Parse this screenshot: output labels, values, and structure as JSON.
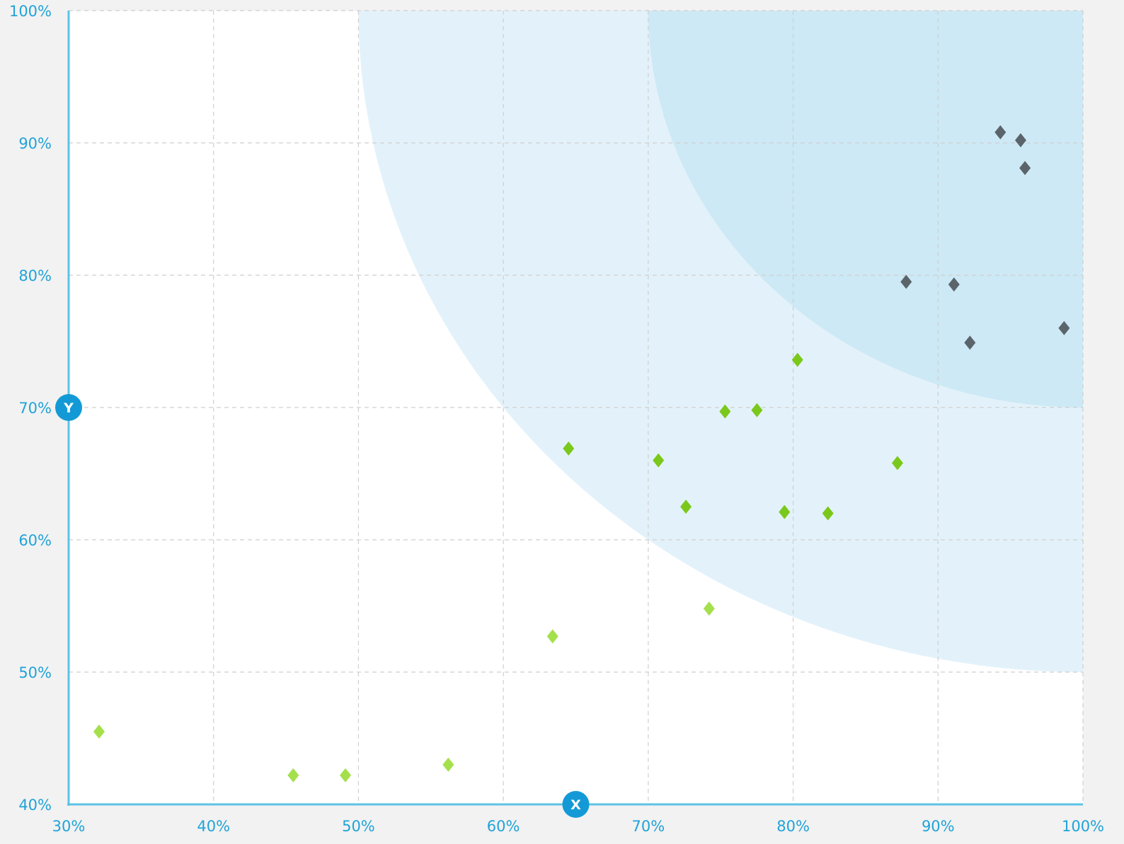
{
  "colors": {
    "background": "#f2f2f2",
    "plot_area": "#ffffff",
    "axis": "#5cc3e6",
    "tick_text": "#21a3d8",
    "grid": "#cfcfcf",
    "zone_outer": "#e3f2fa",
    "zone_inner": "#cde9f5",
    "marker_badge": "#139ad6",
    "marker_text": "#ffffff"
  },
  "chart_data": {
    "type": "scatter",
    "xlim": [
      0.3,
      1.0
    ],
    "ylim": [
      0.4,
      1.0
    ],
    "x_ticks": [
      {
        "value": 0.3,
        "label": "30%"
      },
      {
        "value": 0.4,
        "label": "40%"
      },
      {
        "value": 0.5,
        "label": "50%"
      },
      {
        "value": 0.6,
        "label": "60%"
      },
      {
        "value": 0.7,
        "label": "70%"
      },
      {
        "value": 0.8,
        "label": "80%"
      },
      {
        "value": 0.9,
        "label": "90%"
      },
      {
        "value": 1.0,
        "label": "100%"
      }
    ],
    "y_ticks": [
      {
        "value": 0.4,
        "label": "40%"
      },
      {
        "value": 0.5,
        "label": "50%"
      },
      {
        "value": 0.6,
        "label": "60%"
      },
      {
        "value": 0.7,
        "label": "70%"
      },
      {
        "value": 0.8,
        "label": "80%"
      },
      {
        "value": 0.9,
        "label": "90%"
      },
      {
        "value": 1.0,
        "label": "100%"
      }
    ],
    "grid": true,
    "grid_style": "dashed",
    "zones": [
      {
        "shape": "quarter-ellipse",
        "center": [
          1.0,
          1.0
        ],
        "radius_x": 0.5,
        "radius_y": 0.5,
        "color": "#e3f2fa"
      },
      {
        "shape": "quarter-ellipse",
        "center": [
          1.0,
          1.0
        ],
        "radius_x": 0.3,
        "radius_y": 0.3,
        "color": "#cde9f5"
      }
    ],
    "axis_markers": [
      {
        "axis": "x",
        "value": 0.65,
        "label": "X"
      },
      {
        "axis": "y",
        "value": 0.7,
        "label": "Y"
      }
    ],
    "marker_shape": "diamond",
    "series": [
      {
        "color": "#a4e04c",
        "points": [
          {
            "x": 0.321,
            "y": 0.455
          },
          {
            "x": 0.455,
            "y": 0.422
          },
          {
            "x": 0.491,
            "y": 0.422
          },
          {
            "x": 0.562,
            "y": 0.43
          },
          {
            "x": 0.634,
            "y": 0.527
          },
          {
            "x": 0.742,
            "y": 0.548
          }
        ]
      },
      {
        "color": "#7bc81c",
        "points": [
          {
            "x": 0.645,
            "y": 0.669
          },
          {
            "x": 0.707,
            "y": 0.66
          },
          {
            "x": 0.726,
            "y": 0.625
          },
          {
            "x": 0.753,
            "y": 0.697
          },
          {
            "x": 0.775,
            "y": 0.698
          },
          {
            "x": 0.794,
            "y": 0.621
          },
          {
            "x": 0.803,
            "y": 0.736
          },
          {
            "x": 0.824,
            "y": 0.62
          },
          {
            "x": 0.872,
            "y": 0.658
          }
        ]
      },
      {
        "color": "#5b646b",
        "points": [
          {
            "x": 0.878,
            "y": 0.795
          },
          {
            "x": 0.911,
            "y": 0.793
          },
          {
            "x": 0.922,
            "y": 0.749
          },
          {
            "x": 0.943,
            "y": 0.908
          },
          {
            "x": 0.957,
            "y": 0.902
          },
          {
            "x": 0.96,
            "y": 0.881
          },
          {
            "x": 0.987,
            "y": 0.76
          }
        ]
      }
    ]
  }
}
